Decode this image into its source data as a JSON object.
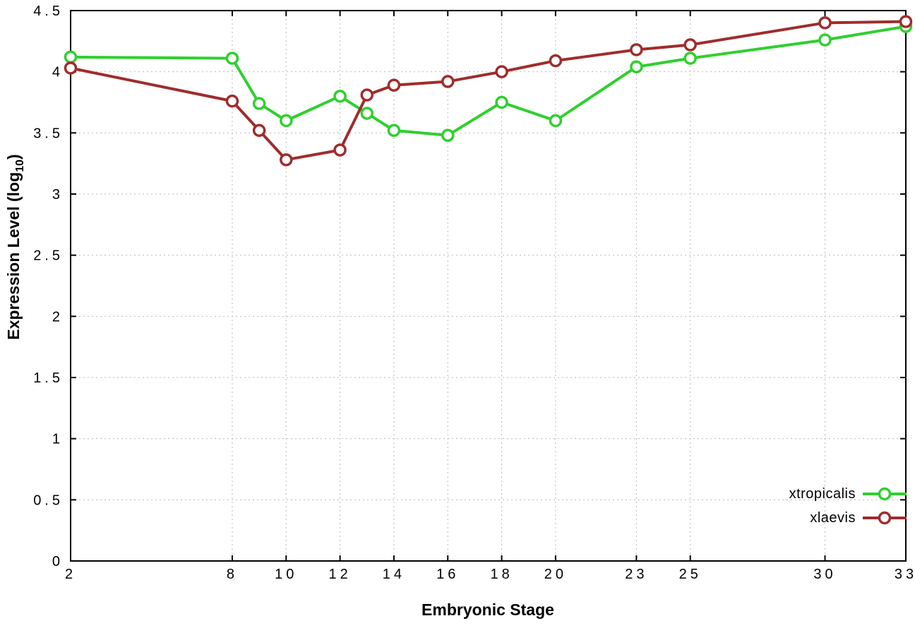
{
  "page": {
    "background": "#ffffff"
  },
  "chart_data": {
    "type": "line",
    "title": "",
    "xlabel": "Embryonic Stage",
    "ylabel": "Expression Level (log10)",
    "ylabel_parts": {
      "pre": "Expression Level (log",
      "sub": "10",
      "post": ")"
    },
    "xlim": [
      2,
      33
    ],
    "ylim": [
      0,
      4.5
    ],
    "x_ticks": [
      2,
      8,
      10,
      12,
      14,
      16,
      18,
      20,
      23,
      25,
      30,
      33
    ],
    "y_ticks": [
      0,
      0.5,
      1,
      1.5,
      2,
      2.5,
      3,
      3.5,
      4,
      4.5
    ],
    "grid": true,
    "legend_position": "inside-bottom-right",
    "axis_color": "#000000",
    "grid_color": "#bbbbbb",
    "marker": "open-circle",
    "series": [
      {
        "name": "xtropicalis",
        "color": "#2ed02e",
        "x": [
          2,
          8,
          9,
          10,
          12,
          13,
          14,
          16,
          18,
          20,
          23,
          25,
          30,
          33
        ],
        "y": [
          4.12,
          4.11,
          3.74,
          3.6,
          3.8,
          3.66,
          3.52,
          3.48,
          3.75,
          3.6,
          4.04,
          4.11,
          4.26,
          4.37
        ]
      },
      {
        "name": "xlaevis",
        "color": "#a02c2c",
        "x": [
          2,
          8,
          9,
          10,
          12,
          13,
          14,
          16,
          18,
          20,
          23,
          25,
          30,
          33
        ],
        "y": [
          4.03,
          3.76,
          3.52,
          3.28,
          3.36,
          3.81,
          3.89,
          3.92,
          4.0,
          4.09,
          4.18,
          4.22,
          4.4,
          4.41
        ]
      }
    ]
  }
}
